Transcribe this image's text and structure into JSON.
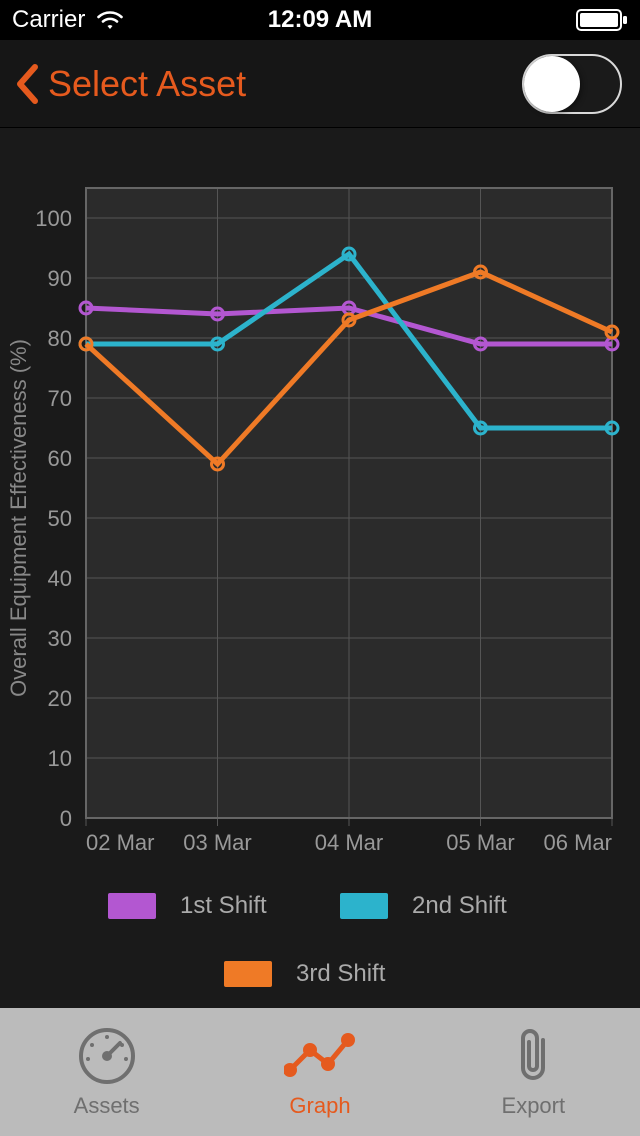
{
  "status_bar": {
    "carrier": "Carrier",
    "time": "12:09 AM"
  },
  "header": {
    "title": "Select Asset",
    "accent_color": "#e55a1e",
    "toggle_on": false
  },
  "chart": {
    "type": "line",
    "background_color": "#1a1a1a",
    "plot_background": "#2b2b2b",
    "grid_color": "#555555",
    "border_color": "#666666",
    "y_axis_title": "Overall Equipment Effectiveness (%)",
    "label_color": "#999999",
    "label_fontsize": 22,
    "ylim": [
      0,
      105
    ],
    "yticks": [
      0,
      10,
      20,
      30,
      40,
      50,
      60,
      70,
      80,
      90,
      100
    ],
    "xticks": [
      "02 Mar",
      "03 Mar",
      "04 Mar",
      "05 Mar",
      "06 Mar"
    ],
    "categories": [
      "02 Mar",
      "03 Mar",
      "04 Mar",
      "05 Mar",
      "06 Mar"
    ],
    "line_width": 5,
    "marker_radius": 6,
    "series": [
      {
        "name": "1st Shift",
        "color": "#b357d1",
        "values": [
          85,
          84,
          85,
          79,
          79
        ]
      },
      {
        "name": "2nd Shift",
        "color": "#2cb3cc",
        "values": [
          79,
          79,
          94,
          65,
          65
        ]
      },
      {
        "name": "3rd Shift",
        "color": "#ef7a26",
        "values": [
          79,
          59,
          83,
          91,
          81
        ]
      }
    ]
  },
  "legend": {
    "items": [
      {
        "label": "1st Shift",
        "color": "#b357d1"
      },
      {
        "label": "2nd Shift",
        "color": "#2cb3cc"
      },
      {
        "label": "3rd Shift",
        "color": "#ef7a26"
      }
    ]
  },
  "tabbar": {
    "background": "#bbbbbb",
    "inactive_color": "#6f6f6f",
    "active_color": "#e55a1e",
    "tabs": [
      {
        "id": "assets",
        "label": "Assets",
        "active": false
      },
      {
        "id": "graph",
        "label": "Graph",
        "active": true
      },
      {
        "id": "export",
        "label": "Export",
        "active": false
      }
    ]
  }
}
